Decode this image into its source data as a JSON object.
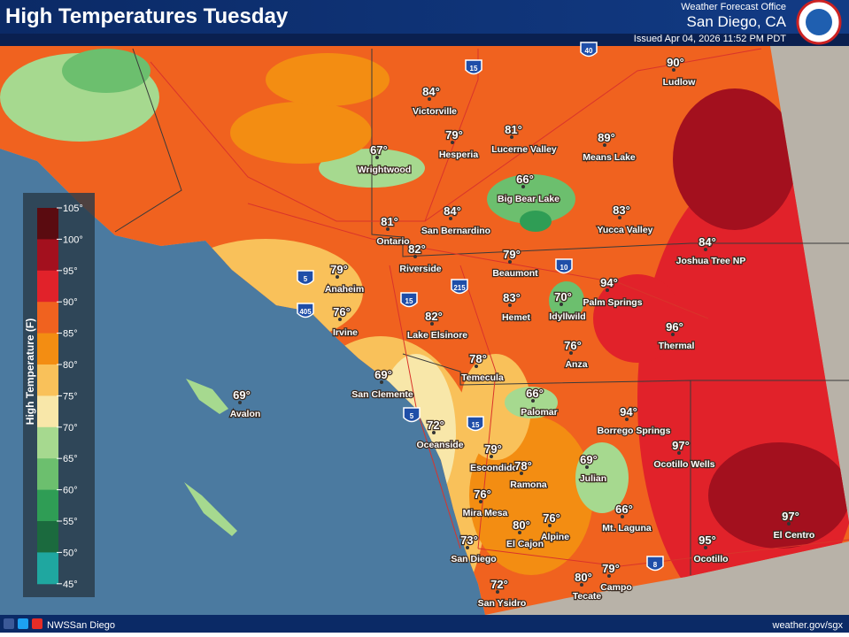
{
  "header": {
    "title": "High Temperatures Tuesday",
    "office_label": "Weather Forecast Office",
    "office": "San Diego, CA",
    "issued": "Issued Apr 04, 2026 11:52 PM PDT"
  },
  "legend": {
    "title": "High Temperature (F)",
    "ticks": [
      "105°",
      "100°",
      "95°",
      "90°",
      "85°",
      "80°",
      "75°",
      "70°",
      "65°",
      "60°",
      "55°",
      "50°",
      "45°"
    ],
    "colors": [
      "#5a0b10",
      "#a3101e",
      "#e1222a",
      "#f0621f",
      "#f38d12",
      "#f9c15a",
      "#f8e7a9",
      "#a6d98f",
      "#6cbf6e",
      "#2f9d55",
      "#1b6a3e",
      "#1fa7a0"
    ]
  },
  "cities": [
    {
      "name": "Victorville",
      "temp": "84°"
    },
    {
      "name": "Hesperia",
      "temp": "79°"
    },
    {
      "name": "Lucerne Valley",
      "temp": "81°"
    },
    {
      "name": "Wrightwood",
      "temp": "67°"
    },
    {
      "name": "Means Lake",
      "temp": "89°"
    },
    {
      "name": "Ludlow",
      "temp": "90°"
    },
    {
      "name": "Big Bear Lake",
      "temp": "66°"
    },
    {
      "name": "San Bernardino",
      "temp": "84°"
    },
    {
      "name": "Ontario",
      "temp": "81°"
    },
    {
      "name": "Yucca Valley",
      "temp": "83°"
    },
    {
      "name": "Joshua Tree NP",
      "temp": "84°"
    },
    {
      "name": "Riverside",
      "temp": "82°"
    },
    {
      "name": "Beaumont",
      "temp": "79°"
    },
    {
      "name": "Anaheim",
      "temp": "79°"
    },
    {
      "name": "Palm Springs",
      "temp": "94°"
    },
    {
      "name": "Irvine",
      "temp": "76°"
    },
    {
      "name": "Hemet",
      "temp": "83°"
    },
    {
      "name": "Idyllwild",
      "temp": "70°"
    },
    {
      "name": "Lake Elsinore",
      "temp": "82°"
    },
    {
      "name": "Thermal",
      "temp": "96°"
    },
    {
      "name": "Anza",
      "temp": "76°"
    },
    {
      "name": "Temecula",
      "temp": "78°"
    },
    {
      "name": "San Clemente",
      "temp": "69°"
    },
    {
      "name": "Avalon",
      "temp": "69°"
    },
    {
      "name": "Palomar",
      "temp": "66°"
    },
    {
      "name": "Borrego Springs",
      "temp": "94°"
    },
    {
      "name": "Oceanside",
      "temp": "72°"
    },
    {
      "name": "Ocotillo Wells",
      "temp": "97°"
    },
    {
      "name": "Escondido",
      "temp": "79°"
    },
    {
      "name": "Ramona",
      "temp": "78°"
    },
    {
      "name": "Julian",
      "temp": "69°"
    },
    {
      "name": "Mira Mesa",
      "temp": "76°"
    },
    {
      "name": "Mt. Laguna",
      "temp": "66°"
    },
    {
      "name": "Alpine",
      "temp": "76°"
    },
    {
      "name": "El Cajon",
      "temp": "80°"
    },
    {
      "name": "San Diego",
      "temp": "73°"
    },
    {
      "name": "El Centro",
      "temp": "97°"
    },
    {
      "name": "Ocotillo",
      "temp": "95°"
    },
    {
      "name": "Campo",
      "temp": "79°"
    },
    {
      "name": "Tecate",
      "temp": "80°"
    },
    {
      "name": "San Ysidro",
      "temp": "72°"
    }
  ],
  "shields": [
    "15",
    "40",
    "5",
    "405",
    "15",
    "215",
    "10",
    "5",
    "15",
    "8"
  ],
  "footer": {
    "handle": "NWSSan Diego",
    "url": "weather.gov/sgx"
  }
}
